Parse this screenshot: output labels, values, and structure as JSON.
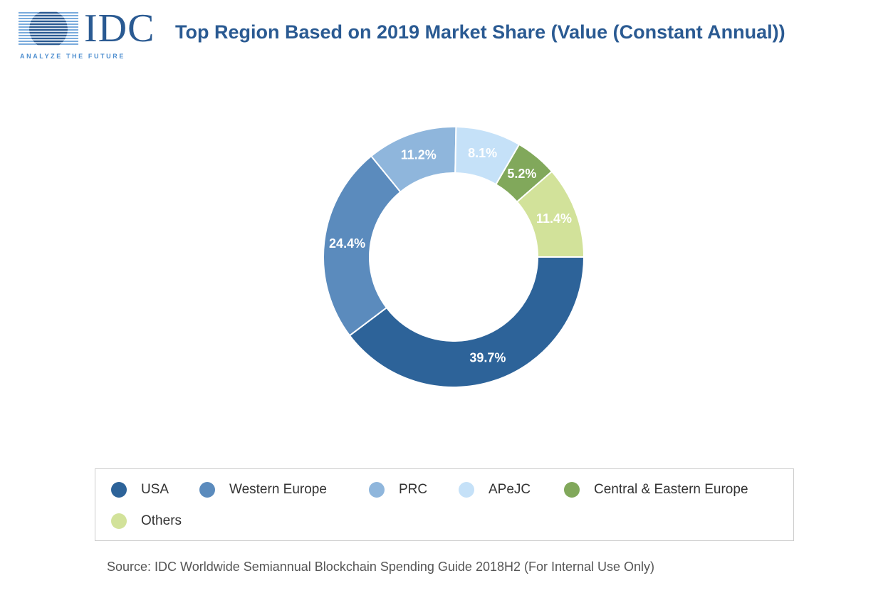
{
  "header": {
    "logo_text": "IDC",
    "logo_tagline": "ANALYZE THE FUTURE"
  },
  "chart_data": {
    "type": "pie",
    "variant": "donut",
    "title": "Top Region Based on 2019 Market Share (Value (Constant Annual))",
    "categories": [
      "USA",
      "Western Europe",
      "PRC",
      "APeJC",
      "Central & Eastern Europe",
      "Others"
    ],
    "values": [
      39.7,
      24.4,
      11.2,
      8.1,
      5.2,
      11.4
    ],
    "labels": [
      "39.7%",
      "24.4%",
      "11.2%",
      "8.1%",
      "5.2%",
      "11.4%"
    ],
    "colors": [
      "#2d6399",
      "#5b8bbd",
      "#8fb6dc",
      "#c5e1f8",
      "#81a85b",
      "#d2e29a"
    ],
    "unit": "%",
    "legend_position": "bottom"
  },
  "source": "Source: IDC Worldwide Semiannual Blockchain Spending Guide 2018H2 (For Internal Use Only)"
}
